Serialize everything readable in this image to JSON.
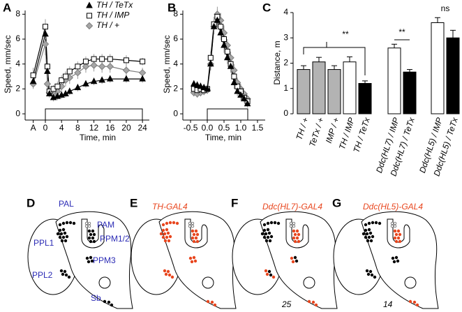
{
  "chart_data": [
    {
      "type": "line",
      "panel_label": "A",
      "xlabel": "Time, min",
      "ylabel": "Speed, mm/sec",
      "x": [
        -3,
        0,
        0.5,
        1,
        2,
        3,
        4,
        5,
        6,
        8,
        10,
        12,
        14,
        16,
        20,
        24
      ],
      "xlim": [
        -5,
        25.7
      ],
      "xticks": [
        {
          "value": -3,
          "label": "A"
        },
        0,
        4,
        8,
        12,
        16,
        20,
        24
      ],
      "ylim": [
        -0.5,
        8.3
      ],
      "yticks": [
        0,
        2,
        4,
        6,
        8
      ],
      "legend": "upper right",
      "series": [
        {
          "name": "TH / +",
          "color": "#7f7f7f",
          "marker": "diamond",
          "marker_fill": "#a6a6a6",
          "values": [
            2.4,
            5.6,
            2.4,
            1.7,
            1.5,
            1.8,
            2.2,
            2.7,
            2.9,
            3.3,
            3.8,
            3.9,
            3.8,
            3.8,
            3.5,
            3.3
          ],
          "errors": [
            0.4,
            0.9,
            0.5,
            0.3,
            0.3,
            0.4,
            0.4,
            0.5,
            0.5,
            0.5,
            0.5,
            0.5,
            0.5,
            0.5,
            0.5,
            0.4
          ]
        },
        {
          "name": "TH / IMP",
          "color": "#000000",
          "marker": "square",
          "marker_fill": "#ffffff",
          "values": [
            3.1,
            7.0,
            3.8,
            1.8,
            2.0,
            2.2,
            2.7,
            3.0,
            3.4,
            3.8,
            4.2,
            4.4,
            4.4,
            4.4,
            4.3,
            4.2
          ],
          "errors": [
            0.6,
            0.6,
            0.6,
            0.3,
            0.3,
            0.4,
            0.4,
            0.4,
            0.4,
            0.4,
            0.4,
            0.4,
            0.4,
            0.4,
            0.4,
            0.3
          ]
        },
        {
          "name": "TH / TeTx",
          "color": "#000000",
          "marker": "triangle",
          "marker_fill": "#000000",
          "values": [
            2.6,
            6.4,
            3.4,
            1.6,
            1.3,
            1.4,
            1.5,
            1.6,
            1.8,
            2.1,
            2.4,
            2.6,
            2.7,
            2.8,
            2.8,
            2.8
          ],
          "errors": [
            0.4,
            0.4,
            0.5,
            0.3,
            0.3,
            0.3,
            0.3,
            0.3,
            0.3,
            0.3,
            0.3,
            0.3,
            0.3,
            0.3,
            0.3,
            0.3
          ]
        }
      ]
    },
    {
      "type": "line",
      "panel_label": "B",
      "xlabel": "Time, min",
      "ylabel": "Speed, mm/sec",
      "x": [
        -0.4,
        -0.3,
        -0.2,
        -0.1,
        0,
        0.1,
        0.2,
        0.3,
        0.4,
        0.5,
        0.6,
        0.7,
        0.8,
        0.9,
        1.0,
        1.1,
        1.2
      ],
      "xlim": [
        -0.73,
        1.73
      ],
      "xticks": [
        -0.5,
        {
          "value": 0,
          "label": "0.0"
        },
        0.5,
        {
          "value": 1,
          "label": "1.0"
        },
        1.5
      ],
      "ylim": [
        -0.5,
        8.3
      ],
      "yticks": [
        0,
        2,
        4,
        6,
        8
      ],
      "series": [
        {
          "color": "#7f7f7f",
          "marker": "diamond",
          "marker_fill": "#a6a6a6",
          "values": [
            1.7,
            1.6,
            1.7,
            1.8,
            1.9,
            4.0,
            7.0,
            8.0,
            7.5,
            6.5,
            5.5,
            4.5,
            3.5,
            2.5,
            2.0,
            1.6,
            1.2
          ],
          "errors": [
            0.3,
            0.3,
            0.3,
            0.3,
            0.3,
            0.5,
            0.6,
            0.6,
            0.6,
            0.6,
            0.5,
            0.5,
            0.5,
            0.4,
            0.4,
            0.3,
            0.3
          ]
        },
        {
          "color": "#000000",
          "marker": "square",
          "marker_fill": "#ffffff",
          "values": [
            2.0,
            1.9,
            2.0,
            1.9,
            2.0,
            4.5,
            7.2,
            7.8,
            7.0,
            6.0,
            5.0,
            4.0,
            3.0,
            2.2,
            1.8,
            1.3,
            1.0
          ],
          "errors": [
            0.3,
            0.3,
            0.3,
            0.3,
            0.3,
            0.5,
            0.6,
            0.6,
            0.6,
            0.6,
            0.5,
            0.5,
            0.5,
            0.4,
            0.4,
            0.3,
            0.3
          ]
        },
        {
          "color": "#000000",
          "marker": "triangle",
          "marker_fill": "#000000",
          "values": [
            2.4,
            2.3,
            2.2,
            2.1,
            2.0,
            4.0,
            7.0,
            7.5,
            6.5,
            5.5,
            4.5,
            3.8,
            2.5,
            1.8,
            1.5,
            1.2,
            0.8
          ],
          "errors": [
            0.3,
            0.3,
            0.3,
            0.3,
            0.3,
            0.5,
            0.6,
            0.6,
            0.6,
            0.6,
            0.5,
            0.5,
            0.5,
            0.4,
            0.4,
            0.3,
            0.3
          ]
        }
      ]
    },
    {
      "type": "bar",
      "panel_label": "C",
      "ylabel": "Distance, m",
      "categories": [
        "TH / +",
        "TeTx / +",
        "IMP / +",
        "TH / IMP",
        "TH / TeTx",
        "Ddc(HL7) / IMP",
        "Ddc(HL7) / TeTx",
        "Ddc(HL5) / IMP",
        "Ddc(HL5) / TeTx"
      ],
      "values": [
        1.75,
        2.05,
        1.75,
        2.05,
        1.2,
        2.6,
        1.65,
        3.6,
        3.0
      ],
      "errors": [
        0.15,
        0.18,
        0.15,
        0.2,
        0.1,
        0.15,
        0.1,
        0.2,
        0.3
      ],
      "colors": [
        "#b3b3b3",
        "#b3b3b3",
        "#b3b3b3",
        "#ffffff",
        "#000000",
        "#ffffff",
        "#000000",
        "#ffffff",
        "#000000"
      ],
      "ylim": [
        0,
        4
      ],
      "yticks": [
        0,
        1,
        2,
        3,
        4
      ],
      "annotations": [
        "**",
        "**",
        "ns"
      ]
    }
  ],
  "diagrams": [
    {
      "panel_label": "D",
      "labels": [
        "PAL",
        "PAM",
        "PPM1/2",
        "PPL1",
        "PPM3",
        "PPL2",
        "Sb"
      ]
    },
    {
      "panel_label": "E",
      "title": "TH-GAL4"
    },
    {
      "panel_label": "F",
      "title": "Ddc(HL7)-GAL4",
      "count": "25"
    },
    {
      "panel_label": "G",
      "title": "Ddc(HL5)-GAL4",
      "count": "14"
    }
  ]
}
